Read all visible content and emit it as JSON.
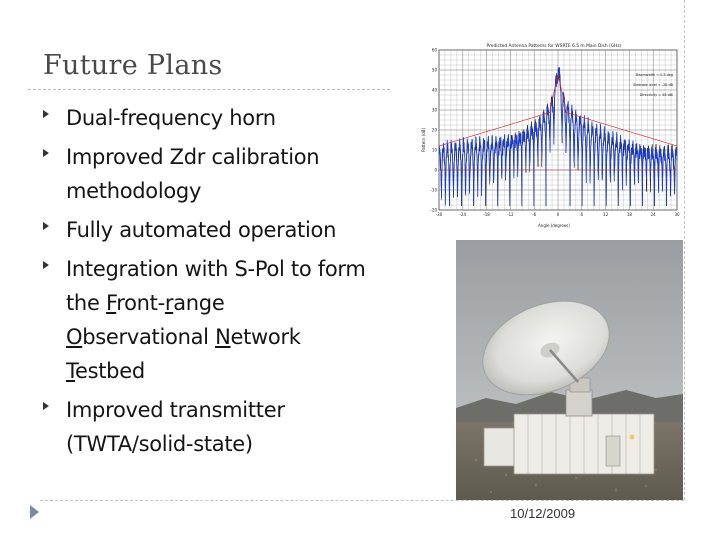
{
  "slide": {
    "title": "Future Plans",
    "footer_date": "10/12/2009"
  },
  "bullets": [
    {
      "parts": [
        {
          "text": "Dual-frequency horn"
        }
      ]
    },
    {
      "parts": [
        {
          "text": "Improved Zdr calibration methodology"
        }
      ]
    },
    {
      "parts": [
        {
          "text": "Fully automated operation"
        }
      ]
    },
    {
      "parts": [
        {
          "text": "Integration with S-Pol to form the "
        },
        {
          "text": "F",
          "u": true
        },
        {
          "text": "ront-"
        },
        {
          "text": "r",
          "u": true
        },
        {
          "text": "ange "
        },
        {
          "text": "O",
          "u": true
        },
        {
          "text": "bservational "
        },
        {
          "text": "N",
          "u": true
        },
        {
          "text": "etwork "
        },
        {
          "text": "T",
          "u": true
        },
        {
          "text": "estbed"
        }
      ]
    },
    {
      "parts": [
        {
          "text": "Improved transmitter (TWTA/solid-state)"
        }
      ]
    }
  ],
  "antenna_chart_image": {
    "title": "Predicted Antenna Patterns for WSRTE 6.5 m Main Dish (GHz)",
    "ylabel": "Pattern (dB)",
    "xlabel": "Angle (degrees)",
    "y_ticks": [
      "60",
      "50",
      "40",
      "30",
      "20",
      "10",
      "0",
      "-10",
      "-20"
    ],
    "x_ticks": [
      "-30",
      "-24",
      "-18",
      "-12",
      "-6",
      "0",
      "6",
      "12",
      "18",
      "24",
      "30"
    ],
    "annotations": [
      "Beamwidth = 0.5 deg",
      "Sidelobe level = -28 dB",
      "Directivity = 48 dBi"
    ],
    "colors": {
      "trace_primary": "#1a3ccf",
      "trace_secondary": "#000000",
      "trace_envelope": "#d01818",
      "grid": "#777777"
    }
  },
  "radar_photo": {
    "description_icon": "radar-dish-photo"
  }
}
